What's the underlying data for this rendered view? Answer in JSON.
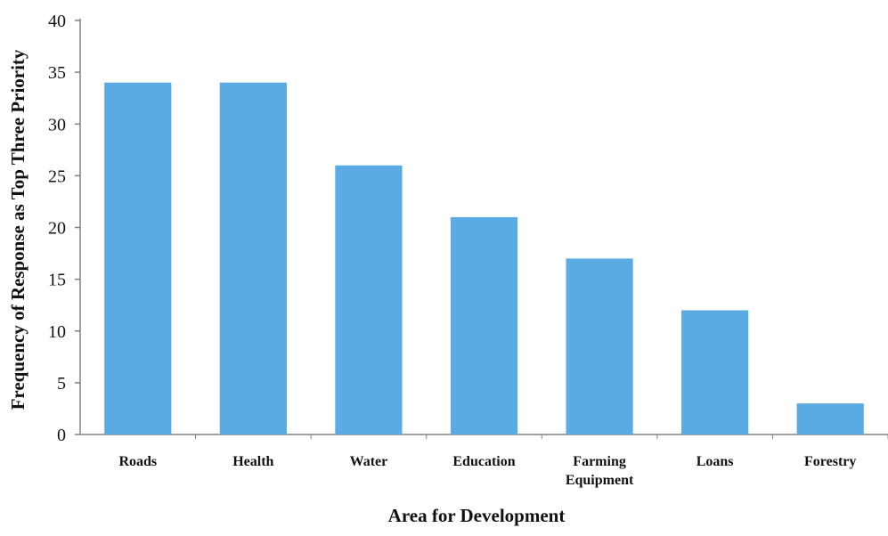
{
  "chart_data": {
    "type": "bar",
    "categories": [
      "Roads",
      "Health",
      "Water",
      "Education",
      "Farming Equipment",
      "Loans",
      "Forestry"
    ],
    "category_lines": [
      [
        "Roads"
      ],
      [
        "Health"
      ],
      [
        "Water"
      ],
      [
        "Education"
      ],
      [
        "Farming",
        "Equipment"
      ],
      [
        "Loans"
      ],
      [
        "Forestry"
      ]
    ],
    "values": [
      34,
      34,
      26,
      21,
      17,
      12,
      3
    ],
    "title": "",
    "xlabel": "Area for Development",
    "ylabel": "Frequency of Response as Top Three Priority",
    "ylim": [
      0,
      40
    ],
    "yticks": [
      0,
      5,
      10,
      15,
      20,
      25,
      30,
      35,
      40
    ],
    "grid": false,
    "legend": "none",
    "bar_color": "#5aaae4",
    "axis_color": "#808080"
  }
}
